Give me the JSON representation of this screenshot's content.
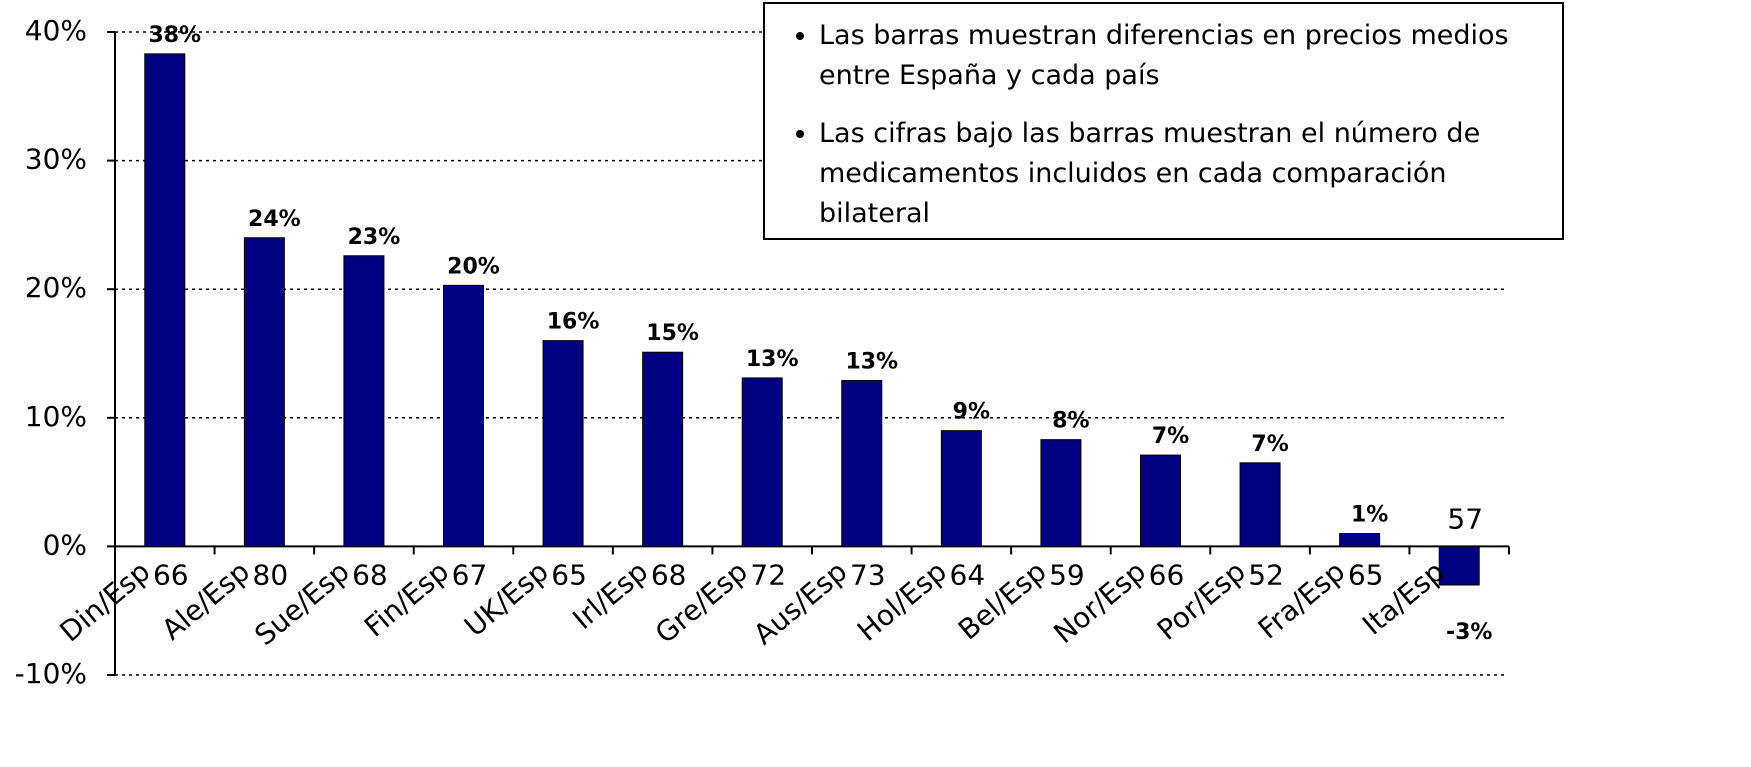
{
  "chart_data": {
    "type": "bar",
    "categories": [
      "Din/Esp",
      "Ale/Esp",
      "Sue/Esp",
      "Fin/Esp",
      "UK/Esp",
      "Irl/Esp",
      "Gre/Esp",
      "Aus/Esp",
      "Hol/Esp",
      "Bel/Esp",
      "Nor/Esp",
      "Por/Esp",
      "Fra/Esp",
      "Ita/Esp"
    ],
    "values": [
      38.3,
      24,
      22.6,
      20.3,
      16,
      15.1,
      13.1,
      12.9,
      9,
      8.3,
      7.1,
      6.5,
      1,
      -3
    ],
    "value_labels": [
      "38%",
      "24%",
      "23%",
      "20%",
      "16%",
      "15%",
      "13%",
      "13%",
      "9%",
      "8%",
      "7%",
      "7%",
      "1%",
      "-3%"
    ],
    "counts": [
      66,
      80,
      68,
      67,
      65,
      68,
      72,
      73,
      64,
      59,
      66,
      52,
      65,
      57
    ],
    "color": "#000080",
    "ylim": [
      -10,
      40
    ],
    "yticks": [
      {
        "value": -10,
        "label": "-10%"
      },
      {
        "value": 0,
        "label": "0%"
      },
      {
        "value": 10,
        "label": "10%"
      },
      {
        "value": 20,
        "label": "20%"
      },
      {
        "value": 30,
        "label": "30%"
      },
      {
        "value": 40,
        "label": "40%"
      }
    ],
    "grid": true,
    "annotations": [
      "Las barras muestran diferencias en precios medios entre España y cada país",
      "Las cifras bajo las barras muestran el número de medicamentos incluidos en cada comparación bilateral"
    ]
  }
}
